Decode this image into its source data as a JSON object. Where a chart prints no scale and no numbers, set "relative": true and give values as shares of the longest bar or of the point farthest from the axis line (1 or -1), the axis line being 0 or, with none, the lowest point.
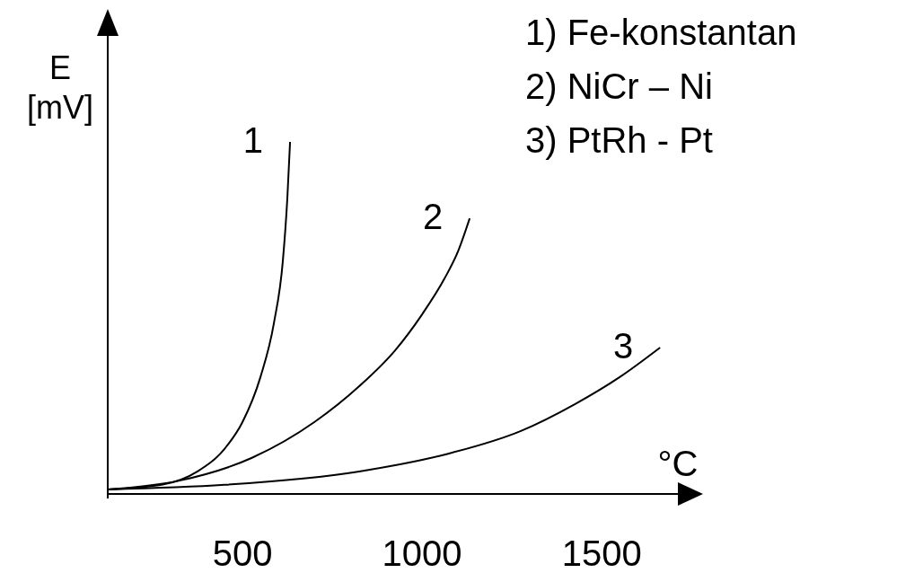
{
  "chart_data": {
    "type": "line",
    "relative": true,
    "xlabel": "°C",
    "ylabel": "E [mV]",
    "xlim": [
      125,
      1712
    ],
    "xticks": [
      500,
      1000,
      1500
    ],
    "grid": false,
    "marker": "none",
    "line_style": "solid",
    "annotations": [
      "1) Fe-konstantan",
      "2) NiCr – Ni",
      "3) PtRh - Pt"
    ],
    "series": [
      {
        "name": "1",
        "color": "#000000",
        "x": [
          125,
          275,
          375,
          450,
          500,
          550,
          587.5,
          612.5,
          625,
          632.5
        ],
        "values": [
          0.013,
          0.026,
          0.064,
          0.128,
          0.204,
          0.332,
          0.485,
          0.663,
          0.842,
          1
        ]
      },
      {
        "name": "2",
        "color": "#000000",
        "x": [
          125,
          325,
          525,
          700,
          825,
          925,
          1000,
          1062.5,
          1100,
          1132.5
        ],
        "values": [
          0.013,
          0.038,
          0.102,
          0.204,
          0.306,
          0.408,
          0.51,
          0.612,
          0.689,
          0.783
        ]
      },
      {
        "name": "3",
        "color": "#000000",
        "x": [
          125,
          450,
          825,
          1075,
          1275,
          1425,
          1550,
          1662.5
        ],
        "values": [
          0.013,
          0.026,
          0.064,
          0.115,
          0.179,
          0.255,
          0.332,
          0.416
        ]
      }
    ]
  }
}
